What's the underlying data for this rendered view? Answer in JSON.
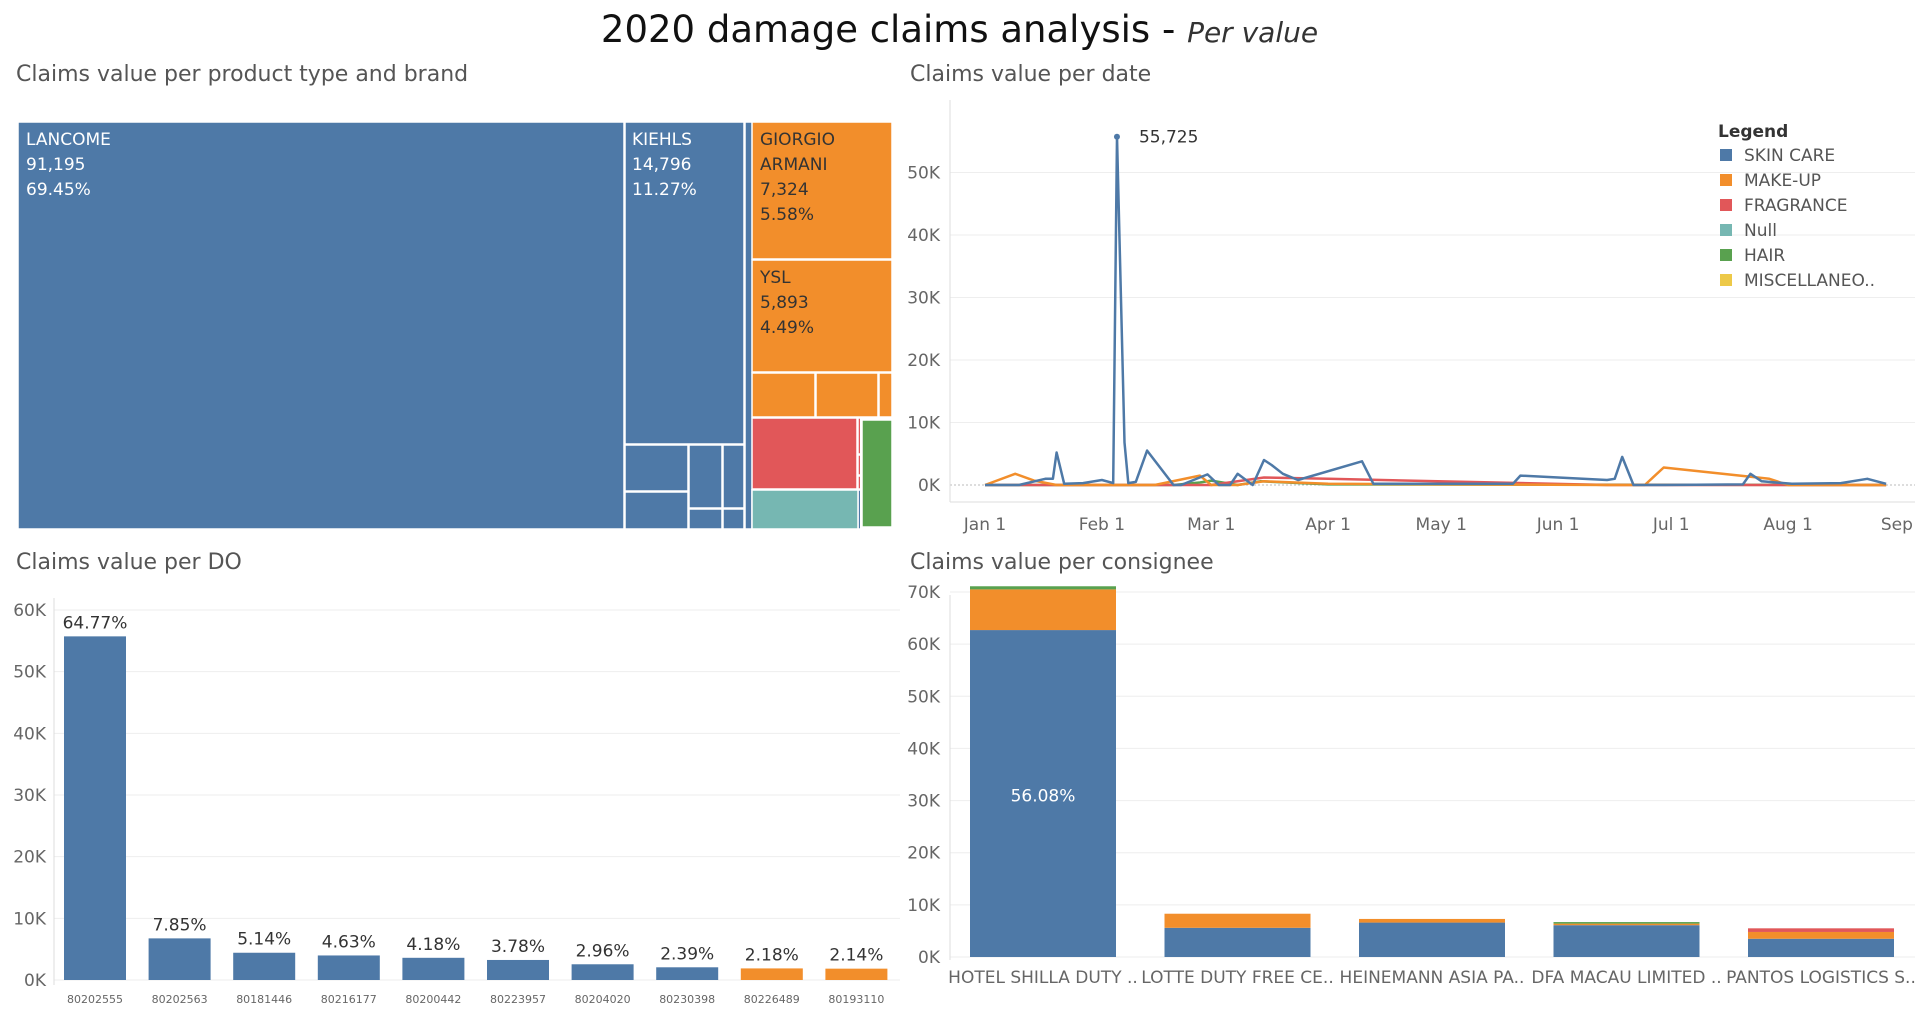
{
  "title": {
    "main": "2020 damage claims analysis - ",
    "sub": "Per value"
  },
  "colors": {
    "skin_care": "#4e79a7",
    "make_up": "#f28e2b",
    "fragrance": "#e15759",
    "null": "#76b7b2",
    "hair": "#59a14f",
    "miscellaneous": "#edc948"
  },
  "panels": {
    "treemap_title": "Claims value per product type and brand",
    "line_title": "Claims value per date",
    "do_title": "Claims value per DO",
    "consignee_title": "Claims value per consignee"
  },
  "chart_data": [
    {
      "type": "treemap",
      "title": "Claims value per product type and brand",
      "brands": [
        {
          "name": "LANCOME",
          "value": "91,195",
          "percent": "69.45%",
          "category": "SKIN CARE"
        },
        {
          "name": "KIEHLS",
          "value": "14,796",
          "percent": "11.27%",
          "category": "SKIN CARE"
        },
        {
          "name": "GIORGIO\nARMANI",
          "value": "7,324",
          "percent": "5.58%",
          "category": "MAKE-UP"
        },
        {
          "name": "YSL",
          "value": "5,893",
          "percent": "4.49%",
          "category": "MAKE-UP"
        }
      ]
    },
    {
      "type": "line",
      "title": "Claims value per date",
      "x_ticks": [
        "Jan 1",
        "Feb 1",
        "Mar 1",
        "Apr 1",
        "May 1",
        "Jun 1",
        "Jul 1",
        "Aug 1",
        "Sep 1"
      ],
      "y_ticks": [
        "0K",
        "10K",
        "20K",
        "30K",
        "40K",
        "50K"
      ],
      "ylim": [
        0,
        60000
      ],
      "peak_label": "55,725",
      "legend": {
        "title": "Legend",
        "items": [
          "SKIN CARE",
          "MAKE-UP",
          "FRAGRANCE",
          "Null",
          "HAIR",
          "MISCELLANEO.."
        ]
      },
      "series": [
        {
          "name": "SKIN CARE",
          "x": [
            "2020-01-01",
            "2020-01-10",
            "2020-01-17",
            "2020-01-19",
            "2020-01-20",
            "2020-01-22",
            "2020-01-27",
            "2020-02-01",
            "2020-02-04",
            "2020-02-05",
            "2020-02-07",
            "2020-02-08",
            "2020-02-10",
            "2020-02-13",
            "2020-02-20",
            "2020-02-22",
            "2020-02-29",
            "2020-03-03",
            "2020-03-06",
            "2020-03-08",
            "2020-03-12",
            "2020-03-15",
            "2020-03-17",
            "2020-03-20",
            "2020-03-24",
            "2020-04-10",
            "2020-04-13",
            "2020-05-20",
            "2020-05-22",
            "2020-06-14",
            "2020-06-16",
            "2020-06-18",
            "2020-06-21",
            "2020-06-23",
            "2020-06-29",
            "2020-07-20",
            "2020-07-22",
            "2020-07-25",
            "2020-08-02",
            "2020-08-15",
            "2020-08-22",
            "2020-08-27"
          ],
          "y": [
            0,
            0,
            1000,
            1000,
            5200,
            200,
            300,
            800,
            300,
            55725,
            6800,
            300,
            500,
            5500,
            0,
            0,
            1700,
            0,
            0,
            1800,
            0,
            4000,
            3200,
            1800,
            800,
            3800,
            200,
            200,
            1500,
            800,
            1000,
            4500,
            0,
            0,
            0,
            100,
            1800,
            600,
            200,
            300,
            1000,
            200
          ]
        },
        {
          "name": "MAKE-UP",
          "x": [
            "2020-01-01",
            "2020-01-09",
            "2020-01-14",
            "2020-01-20",
            "2020-01-27",
            "2020-02-15",
            "2020-02-27",
            "2020-03-01",
            "2020-03-08",
            "2020-03-15",
            "2020-04-01",
            "2020-06-14",
            "2020-06-24",
            "2020-06-29",
            "2020-07-27",
            "2020-08-01",
            "2020-08-27"
          ],
          "y": [
            0,
            1800,
            700,
            0,
            0,
            0,
            1500,
            0,
            0,
            600,
            200,
            0,
            0,
            2800,
            1000,
            0,
            0
          ]
        },
        {
          "name": "FRAGRANCE",
          "x": [
            "2020-01-01",
            "2020-02-15",
            "2020-03-01",
            "2020-03-08",
            "2020-03-15",
            "2020-04-01",
            "2020-06-14",
            "2020-08-27"
          ],
          "y": [
            0,
            0,
            0,
            600,
            1200,
            1000,
            0,
            0
          ]
        },
        {
          "name": "HAIR",
          "x": [
            "2020-01-01",
            "2020-02-20",
            "2020-02-27",
            "2020-03-01",
            "2020-03-08",
            "2020-03-14",
            "2020-04-01",
            "2020-08-27"
          ],
          "y": [
            0,
            0,
            400,
            700,
            0,
            600,
            100,
            0
          ]
        }
      ]
    },
    {
      "type": "bar",
      "title": "Claims value per DO",
      "categories": [
        "80202555",
        "80202563",
        "80181446",
        "80216177",
        "80200442",
        "80223957",
        "80204020",
        "80230398",
        "80226489",
        "80193110"
      ],
      "values": [
        55725,
        6750,
        4420,
        3980,
        3600,
        3250,
        2550,
        2060,
        1880,
        1840
      ],
      "labels": [
        "64.77%",
        "7.85%",
        "5.14%",
        "4.63%",
        "4.18%",
        "3.78%",
        "2.96%",
        "2.39%",
        "2.18%",
        "2.14%"
      ],
      "bar_categories": [
        "SKIN CARE",
        "SKIN CARE",
        "SKIN CARE",
        "SKIN CARE",
        "SKIN CARE",
        "SKIN CARE",
        "SKIN CARE",
        "SKIN CARE",
        "MAKE-UP",
        "MAKE-UP"
      ],
      "y_ticks": [
        "0K",
        "10K",
        "20K",
        "30K",
        "40K",
        "50K",
        "60K"
      ],
      "ylim": [
        0,
        60000
      ]
    },
    {
      "type": "bar",
      "stacked": true,
      "title": "Claims value per consignee",
      "categories": [
        "HOTEL SHILLA DUTY ..",
        "LOTTE DUTY FREE CE..",
        "HEINEMANN ASIA PA..",
        "DFA MACAU LIMITED ..",
        "PANTOS LOGISTICS S.."
      ],
      "series": [
        {
          "name": "SKIN CARE",
          "values": [
            62700,
            5600,
            6600,
            6100,
            3500
          ]
        },
        {
          "name": "MAKE-UP",
          "values": [
            7800,
            2700,
            700,
            300,
            1300
          ]
        },
        {
          "name": "FRAGRANCE",
          "values": [
            0,
            0,
            0,
            0,
            700
          ]
        },
        {
          "name": "HAIR",
          "values": [
            600,
            0,
            0,
            300,
            0
          ]
        }
      ],
      "segment_label": "56.08%",
      "y_ticks": [
        "0K",
        "10K",
        "20K",
        "30K",
        "40K",
        "50K",
        "60K",
        "70K"
      ],
      "ylim": [
        0,
        72000
      ]
    }
  ]
}
